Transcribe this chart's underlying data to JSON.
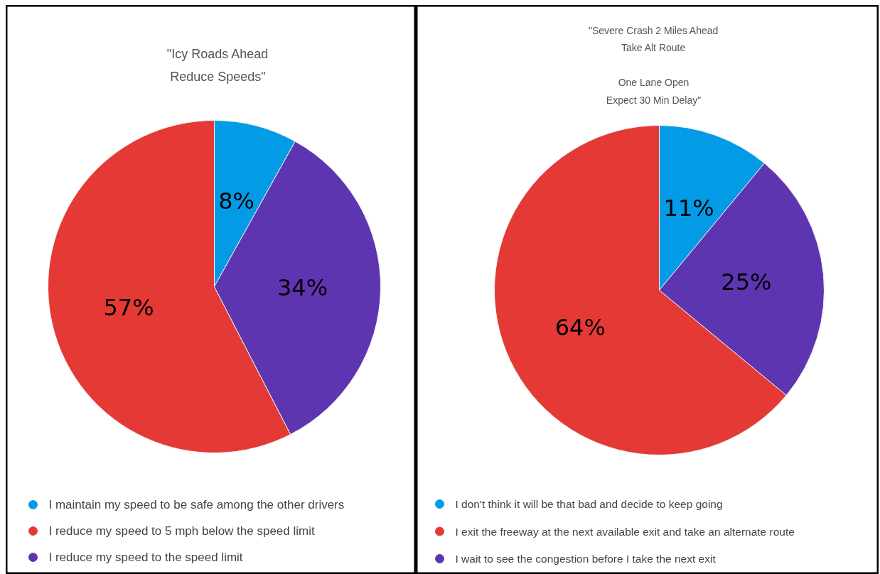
{
  "chart_data": [
    {
      "type": "pie",
      "title": "\"Icy Roads Ahead\nReduce Speeds\"",
      "categories": [
        "I maintain my speed to be safe among the other drivers",
        "I reduce my speed to 5 mph below the speed limit",
        "I reduce my speed to the speed limit"
      ],
      "values": [
        8,
        57,
        34
      ],
      "colors": [
        "#039be5",
        "#e53935",
        "#5e35b1"
      ],
      "value_labels": [
        "8%",
        "57%",
        "34%"
      ],
      "legend": "bottom"
    },
    {
      "type": "pie",
      "title": "\"Severe Crash 2 Miles Ahead\nTake Alt Route\n\nOne Lane Open\nExpect 30 Min Delay\"",
      "categories": [
        "I don't think it will be that bad and decide to keep going",
        "I exit the freeway at the next available exit and take an alternate route",
        "I wait to see the congestion before I take the next exit"
      ],
      "values": [
        11,
        64,
        25
      ],
      "colors": [
        "#039be5",
        "#e53935",
        "#5e35b1"
      ],
      "value_labels": [
        "11%",
        "64%",
        "25%"
      ],
      "legend": "bottom"
    }
  ]
}
